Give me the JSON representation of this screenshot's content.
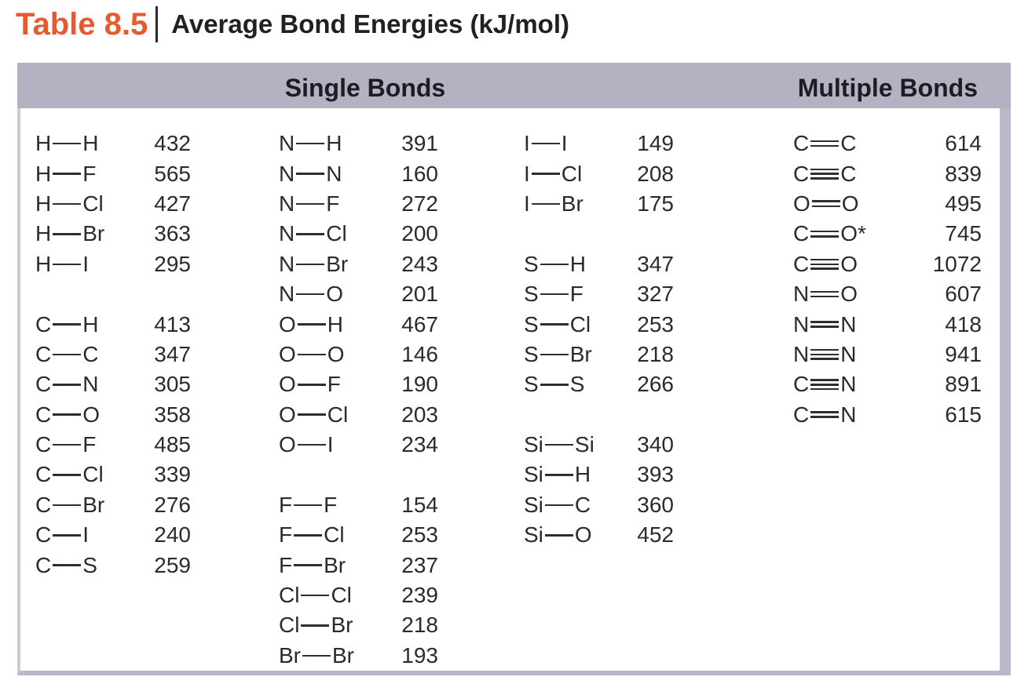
{
  "title": {
    "label": "Table 8.5",
    "text": "Average Bond Energies (kJ/mol)"
  },
  "colors": {
    "accent_orange": "#e65a2d",
    "header_band": "#b4b1c2",
    "table_border": "#bab7c8",
    "text": "#2b2b2e"
  },
  "table": {
    "section_headers": [
      {
        "id": "single",
        "label": "Single Bonds"
      },
      {
        "id": "multiple",
        "label": "Multiple Bonds"
      }
    ],
    "unit": "kJ/mol",
    "bond_type_key": {
      "s": "single",
      "d": "double",
      "t": "triple"
    },
    "columns": [
      {
        "entries": [
          {
            "a": "H",
            "t": "s",
            "b": "H",
            "v": 432
          },
          {
            "a": "H",
            "t": "s",
            "b": "F",
            "v": 565
          },
          {
            "a": "H",
            "t": "s",
            "b": "Cl",
            "v": 427
          },
          {
            "a": "H",
            "t": "s",
            "b": "Br",
            "v": 363
          },
          {
            "a": "H",
            "t": "s",
            "b": "I",
            "v": 295
          },
          null,
          {
            "a": "C",
            "t": "s",
            "b": "H",
            "v": 413
          },
          {
            "a": "C",
            "t": "s",
            "b": "C",
            "v": 347
          },
          {
            "a": "C",
            "t": "s",
            "b": "N",
            "v": 305
          },
          {
            "a": "C",
            "t": "s",
            "b": "O",
            "v": 358
          },
          {
            "a": "C",
            "t": "s",
            "b": "F",
            "v": 485
          },
          {
            "a": "C",
            "t": "s",
            "b": "Cl",
            "v": 339
          },
          {
            "a": "C",
            "t": "s",
            "b": "Br",
            "v": 276
          },
          {
            "a": "C",
            "t": "s",
            "b": "I",
            "v": 240
          },
          {
            "a": "C",
            "t": "s",
            "b": "S",
            "v": 259
          },
          null,
          null,
          null
        ]
      },
      {
        "entries": [
          {
            "a": "N",
            "t": "s",
            "b": "H",
            "v": 391
          },
          {
            "a": "N",
            "t": "s",
            "b": "N",
            "v": 160
          },
          {
            "a": "N",
            "t": "s",
            "b": "F",
            "v": 272
          },
          {
            "a": "N",
            "t": "s",
            "b": "Cl",
            "v": 200
          },
          {
            "a": "N",
            "t": "s",
            "b": "Br",
            "v": 243
          },
          {
            "a": "N",
            "t": "s",
            "b": "O",
            "v": 201
          },
          {
            "a": "O",
            "t": "s",
            "b": "H",
            "v": 467
          },
          {
            "a": "O",
            "t": "s",
            "b": "O",
            "v": 146
          },
          {
            "a": "O",
            "t": "s",
            "b": "F",
            "v": 190
          },
          {
            "a": "O",
            "t": "s",
            "b": "Cl",
            "v": 203
          },
          {
            "a": "O",
            "t": "s",
            "b": "I",
            "v": 234
          },
          null,
          {
            "a": "F",
            "t": "s",
            "b": "F",
            "v": 154
          },
          {
            "a": "F",
            "t": "s",
            "b": "Cl",
            "v": 253
          },
          {
            "a": "F",
            "t": "s",
            "b": "Br",
            "v": 237
          },
          {
            "a": "Cl",
            "t": "s",
            "b": "Cl",
            "v": 239
          },
          {
            "a": "Cl",
            "t": "s",
            "b": "Br",
            "v": 218
          },
          {
            "a": "Br",
            "t": "s",
            "b": "Br",
            "v": 193
          }
        ]
      },
      {
        "entries": [
          {
            "a": "I",
            "t": "s",
            "b": "I",
            "v": 149
          },
          {
            "a": "I",
            "t": "s",
            "b": "Cl",
            "v": 208
          },
          {
            "a": "I",
            "t": "s",
            "b": "Br",
            "v": 175
          },
          null,
          {
            "a": "S",
            "t": "s",
            "b": "H",
            "v": 347
          },
          {
            "a": "S",
            "t": "s",
            "b": "F",
            "v": 327
          },
          {
            "a": "S",
            "t": "s",
            "b": "Cl",
            "v": 253
          },
          {
            "a": "S",
            "t": "s",
            "b": "Br",
            "v": 218
          },
          {
            "a": "S",
            "t": "s",
            "b": "S",
            "v": 266
          },
          null,
          {
            "a": "Si",
            "t": "s",
            "b": "Si",
            "v": 340
          },
          {
            "a": "Si",
            "t": "s",
            "b": "H",
            "v": 393
          },
          {
            "a": "Si",
            "t": "s",
            "b": "C",
            "v": 360
          },
          {
            "a": "Si",
            "t": "s",
            "b": "O",
            "v": 452
          },
          null,
          null,
          null,
          null
        ]
      },
      {
        "entries": [
          {
            "a": "C",
            "t": "d",
            "b": "C",
            "v": 614
          },
          {
            "a": "C",
            "t": "t",
            "b": "C",
            "v": 839
          },
          {
            "a": "O",
            "t": "d",
            "b": "O",
            "v": 495
          },
          {
            "a": "C",
            "t": "d",
            "b": "O",
            "n": "*",
            "v": 745
          },
          {
            "a": "C",
            "t": "t",
            "b": "O",
            "v": 1072
          },
          {
            "a": "N",
            "t": "d",
            "b": "O",
            "v": 607
          },
          {
            "a": "N",
            "t": "d",
            "b": "N",
            "v": 418
          },
          {
            "a": "N",
            "t": "t",
            "b": "N",
            "v": 941
          },
          {
            "a": "C",
            "t": "t",
            "b": "N",
            "v": 891
          },
          {
            "a": "C",
            "t": "d",
            "b": "N",
            "v": 615
          },
          null,
          null,
          null,
          null,
          null,
          null,
          null,
          null
        ]
      }
    ]
  }
}
